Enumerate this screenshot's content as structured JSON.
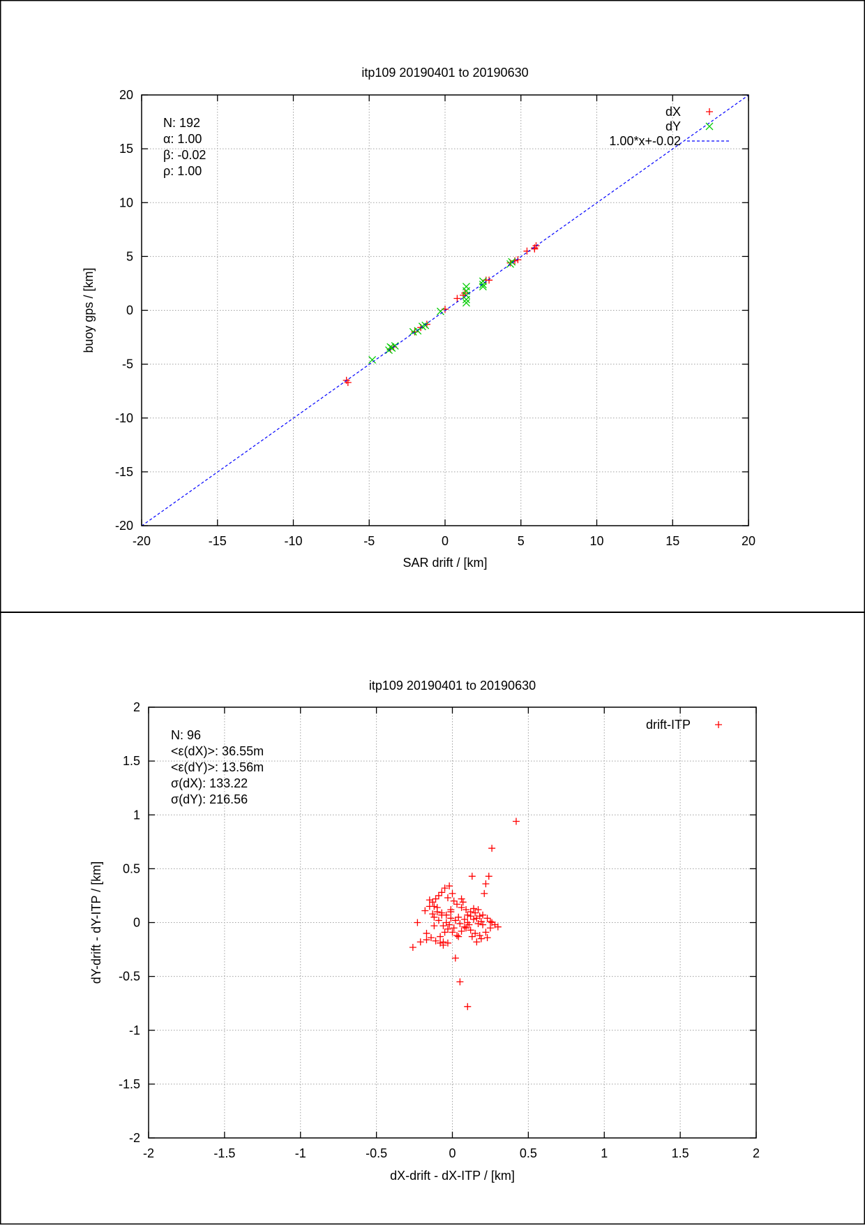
{
  "chart_data": [
    {
      "type": "scatter",
      "title": "itp109 20190401 to 20190630",
      "xlabel": "SAR drift / [km]",
      "ylabel": "buoy gps / [km]",
      "xlim": [
        -20,
        20
      ],
      "ylim": [
        -20,
        20
      ],
      "x_ticks": [
        -20,
        -15,
        -10,
        -5,
        0,
        5,
        10,
        15,
        20
      ],
      "y_ticks": [
        -20,
        -15,
        -10,
        -5,
        0,
        5,
        10,
        15,
        20
      ],
      "grid": true,
      "legend_position": "top-right",
      "stats": [
        "N: 192",
        "α: 1.00",
        "β: -0.02",
        "ρ: 1.00"
      ],
      "series": [
        {
          "name": "dX",
          "marker": "plus",
          "color": "#ff0000",
          "points": [
            [
              -6.5,
              -6.5
            ],
            [
              -6.4,
              -6.7
            ],
            [
              -3.6,
              -3.6
            ],
            [
              -3.4,
              -3.4
            ],
            [
              -2.0,
              -2.0
            ],
            [
              -1.6,
              -1.6
            ],
            [
              -1.2,
              -1.3
            ],
            [
              0.0,
              0.1
            ],
            [
              0.8,
              1.1
            ],
            [
              1.2,
              1.4
            ],
            [
              1.3,
              1.6
            ],
            [
              2.7,
              2.8
            ],
            [
              2.9,
              2.8
            ],
            [
              4.3,
              4.4
            ],
            [
              4.6,
              4.6
            ],
            [
              4.8,
              4.7
            ],
            [
              5.4,
              5.5
            ],
            [
              5.9,
              5.8
            ],
            [
              6.0,
              6.0
            ],
            [
              5.9,
              5.7
            ]
          ]
        },
        {
          "name": "dY",
          "marker": "cross",
          "color": "#00cc00",
          "points": [
            [
              -4.8,
              -4.6
            ],
            [
              -3.7,
              -3.7
            ],
            [
              -3.6,
              -3.4
            ],
            [
              -3.3,
              -3.3
            ],
            [
              -3.5,
              -3.5
            ],
            [
              -2.1,
              -2.0
            ],
            [
              -1.8,
              -1.9
            ],
            [
              -1.5,
              -1.5
            ],
            [
              -1.3,
              -1.4
            ],
            [
              -0.3,
              -0.1
            ],
            [
              1.4,
              2.2
            ],
            [
              1.4,
              1.8
            ],
            [
              1.4,
              1.4
            ],
            [
              1.4,
              1.0
            ],
            [
              1.4,
              0.7
            ],
            [
              2.5,
              2.7
            ],
            [
              2.5,
              2.4
            ],
            [
              2.5,
              2.2
            ],
            [
              4.4,
              4.5
            ],
            [
              4.3,
              4.3
            ]
          ]
        },
        {
          "name": "1.00*x+-0.02",
          "type": "line",
          "color": "#0000ff",
          "slope": 1.0,
          "intercept": -0.02
        }
      ]
    },
    {
      "type": "scatter",
      "title": "itp109 20190401 to 20190630",
      "xlabel": "dX-drift - dX-ITP / [km]",
      "ylabel": "dY-drift - dY-ITP / [km]",
      "xlim": [
        -2,
        2
      ],
      "ylim": [
        -2,
        2
      ],
      "x_ticks": [
        -2,
        -1.5,
        -1,
        -0.5,
        0,
        0.5,
        1,
        1.5,
        2
      ],
      "y_ticks": [
        -2,
        -1.5,
        -1,
        -0.5,
        0,
        0.5,
        1,
        1.5,
        2
      ],
      "grid": true,
      "legend_position": "top-right",
      "stats": [
        "N: 96",
        "<ε(dX)>:  36.55m",
        "<ε(dY)>: 13.56m",
        "σ(dX):  133.22",
        "σ(dY):  216.56"
      ],
      "series": [
        {
          "name": "drift-ITP",
          "marker": "plus",
          "color": "#ff0000",
          "points": [
            [
              0.42,
              0.94
            ],
            [
              0.26,
              0.69
            ],
            [
              0.13,
              0.43
            ],
            [
              0.24,
              0.43
            ],
            [
              0.22,
              0.36
            ],
            [
              0.21,
              0.27
            ],
            [
              -0.02,
              0.34
            ],
            [
              -0.05,
              0.32
            ],
            [
              -0.07,
              0.28
            ],
            [
              -0.09,
              0.25
            ],
            [
              -0.11,
              0.22
            ],
            [
              -0.13,
              0.19
            ],
            [
              -0.12,
              0.15
            ],
            [
              -0.15,
              0.21
            ],
            [
              -0.03,
              0.23
            ],
            [
              0.01,
              0.2
            ],
            [
              0.03,
              0.17
            ],
            [
              0.06,
              0.14
            ],
            [
              0.09,
              0.12
            ],
            [
              0.12,
              0.1
            ],
            [
              0.15,
              0.09
            ],
            [
              0.18,
              0.06
            ],
            [
              0.16,
              0.04
            ],
            [
              0.2,
              0.07
            ],
            [
              0.19,
              0.01
            ],
            [
              0.17,
              -0.01
            ],
            [
              0.14,
              0.03
            ],
            [
              0.11,
              -0.02
            ],
            [
              0.08,
              -0.04
            ],
            [
              0.05,
              -0.01
            ],
            [
              0.02,
              0.02
            ],
            [
              -0.01,
              0.04
            ],
            [
              -0.04,
              0.07
            ],
            [
              -0.07,
              0.09
            ],
            [
              -0.1,
              0.1
            ],
            [
              -0.12,
              0.05
            ],
            [
              -0.09,
              0.02
            ],
            [
              -0.06,
              -0.03
            ],
            [
              -0.03,
              -0.06
            ],
            [
              0.0,
              -0.09
            ],
            [
              0.03,
              -0.12
            ],
            [
              0.06,
              -0.08
            ],
            [
              0.09,
              -0.05
            ],
            [
              0.12,
              -0.07
            ],
            [
              0.15,
              -0.1
            ],
            [
              0.18,
              -0.12
            ],
            [
              0.22,
              -0.09
            ],
            [
              0.25,
              -0.05
            ],
            [
              0.28,
              -0.02
            ],
            [
              0.3,
              -0.04
            ],
            [
              0.25,
              0.01
            ],
            [
              0.23,
              0.04
            ],
            [
              0.2,
              -0.02
            ],
            [
              -0.02,
              -0.02
            ],
            [
              -0.05,
              -0.09
            ],
            [
              -0.08,
              -0.13
            ],
            [
              -0.06,
              -0.18
            ],
            [
              -0.08,
              -0.19
            ],
            [
              -0.06,
              -0.21
            ],
            [
              -0.03,
              -0.19
            ],
            [
              -0.11,
              -0.17
            ],
            [
              -0.14,
              -0.14
            ],
            [
              -0.17,
              -0.16
            ],
            [
              -0.21,
              -0.18
            ],
            [
              -0.23,
              0.0
            ],
            [
              -0.26,
              -0.23
            ],
            [
              -0.18,
              0.11
            ],
            [
              -0.15,
              0.15
            ],
            [
              -0.1,
              0.14
            ],
            [
              -0.13,
              0.08
            ],
            [
              -0.01,
              0.1
            ],
            [
              0.04,
              0.05
            ],
            [
              0.08,
              0.03
            ],
            [
              0.12,
              0.06
            ],
            [
              0.13,
              -0.13
            ],
            [
              0.16,
              -0.18
            ],
            [
              0.02,
              -0.33
            ],
            [
              0.05,
              -0.55
            ],
            [
              0.1,
              -0.78
            ],
            [
              0.19,
              -0.15
            ],
            [
              0.23,
              -0.14
            ],
            [
              0.26,
              0.0
            ],
            [
              -0.01,
              0.12
            ],
            [
              0.07,
              0.19
            ],
            [
              0.1,
              0.07
            ],
            [
              -0.04,
              0.0
            ],
            [
              0.01,
              -0.05
            ],
            [
              0.04,
              -0.13
            ],
            [
              -0.17,
              -0.1
            ],
            [
              0.1,
              0.0
            ],
            [
              0.14,
              0.13
            ],
            [
              0.17,
              0.12
            ],
            [
              -0.07,
              0.07
            ],
            [
              0.0,
              0.27
            ],
            [
              0.06,
              0.22
            ],
            [
              -0.12,
              -0.03
            ]
          ]
        }
      ]
    }
  ]
}
